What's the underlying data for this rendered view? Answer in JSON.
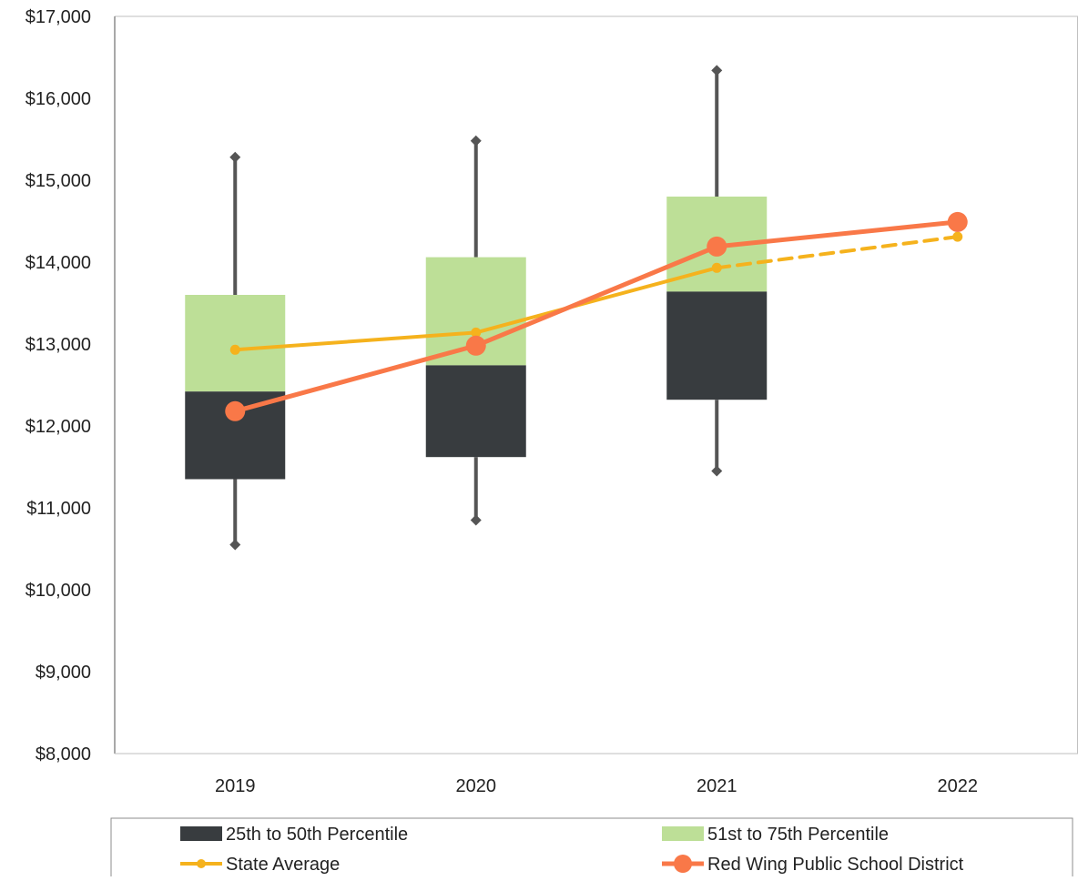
{
  "chart_data": {
    "type": "box",
    "categories": [
      "2019",
      "2020",
      "2021",
      "2022"
    ],
    "ylim": [
      8000,
      17000
    ],
    "yticks": [
      8000,
      9000,
      10000,
      11000,
      12000,
      13000,
      14000,
      15000,
      16000,
      17000
    ],
    "ytick_labels": [
      "$8,000",
      "$9,000",
      "$10,000",
      "$11,000",
      "$12,000",
      "$13,000",
      "$14,000",
      "$15,000",
      "$16,000",
      "$17,000"
    ],
    "boxes": [
      {
        "category": "2019",
        "min": 10550,
        "q1": 11350,
        "median": 12420,
        "q3": 13600,
        "max": 15280
      },
      {
        "category": "2020",
        "min": 10850,
        "q1": 11620,
        "median": 12740,
        "q3": 14060,
        "max": 15480
      },
      {
        "category": "2021",
        "min": 11450,
        "q1": 12320,
        "median": 13640,
        "q3": 14800,
        "max": 16340
      }
    ],
    "series": [
      {
        "name": "State Average",
        "values": [
          12930,
          13140,
          13930,
          14310
        ],
        "color": "#F5B21D",
        "projected_from_index": 2
      },
      {
        "name": "Red Wing Public School District",
        "values": [
          12180,
          12980,
          14190,
          14490
        ],
        "color": "#F97848"
      }
    ],
    "band_colors": {
      "lower": "#383C3F",
      "upper": "#BDDF97",
      "whisker": "#555555"
    },
    "legend": {
      "position": "bottom",
      "items": [
        {
          "label": "25th to 50th Percentile",
          "kind": "box-lower"
        },
        {
          "label": "51st to 75th Percentile",
          "kind": "box-upper"
        },
        {
          "label": "State Average",
          "kind": "line-state"
        },
        {
          "label": "Red Wing Public School District",
          "kind": "line-district"
        }
      ]
    }
  }
}
